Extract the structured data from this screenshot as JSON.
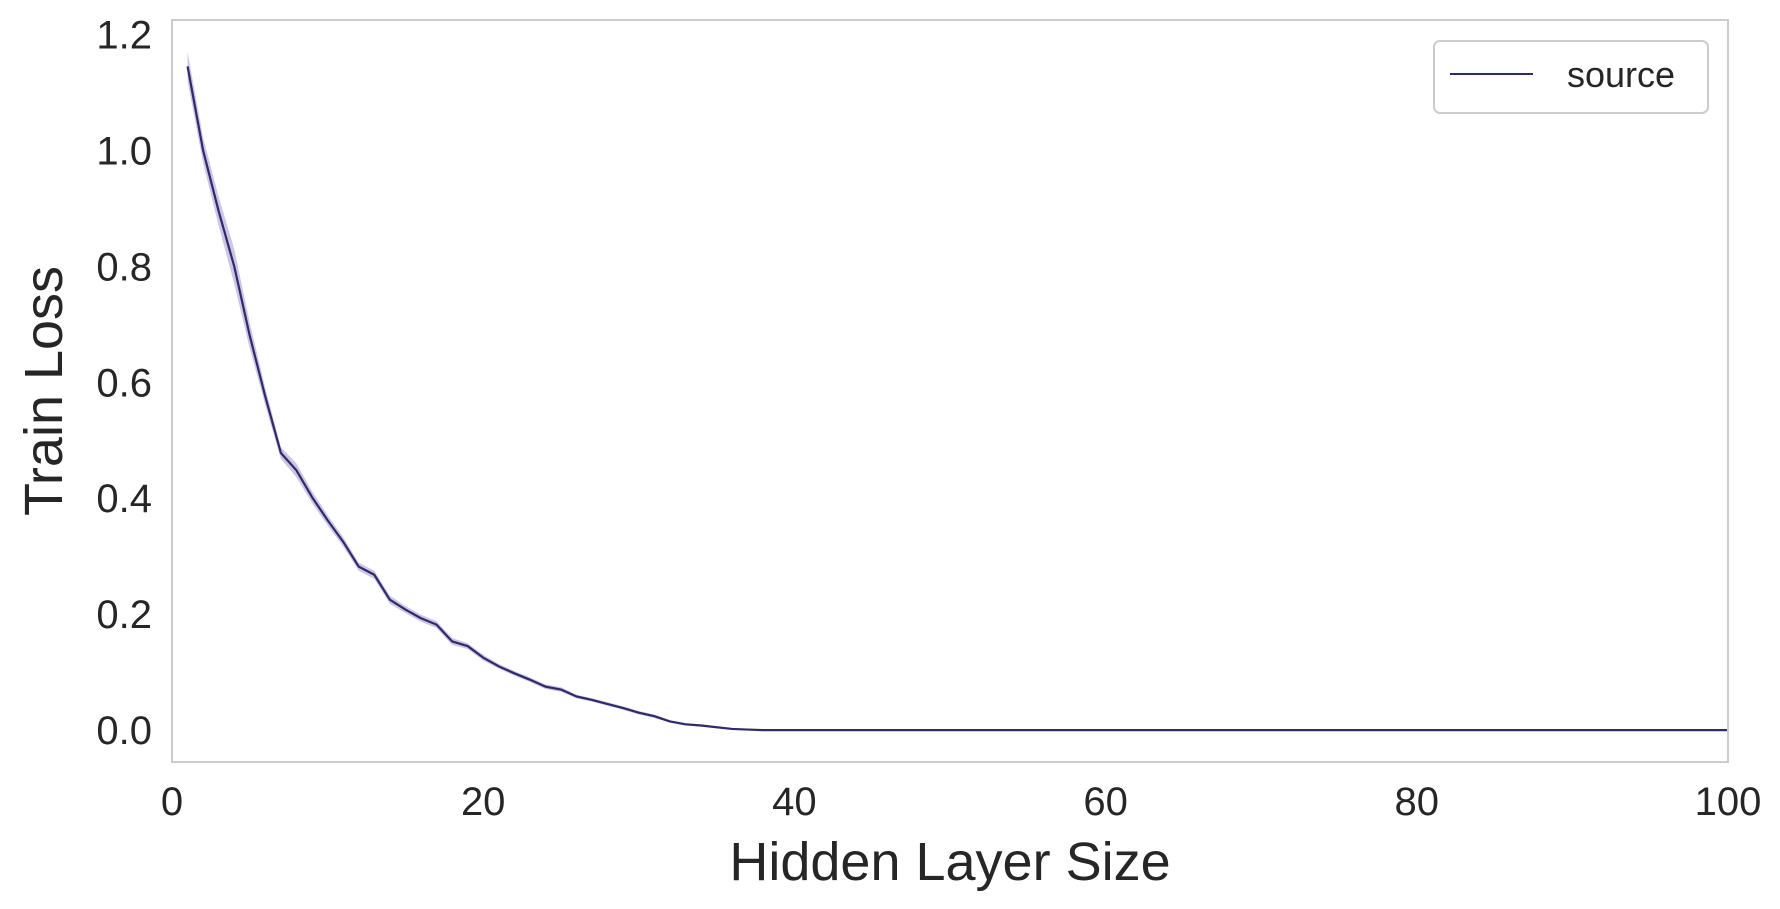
{
  "chart_data": {
    "type": "line",
    "xlabel": "Hidden Layer Size",
    "ylabel": "Train Loss",
    "xlim": [
      0,
      100
    ],
    "ylim": [
      -0.055,
      1.225
    ],
    "xticks": [
      "0",
      "20",
      "40",
      "60",
      "80",
      "100"
    ],
    "yticks": [
      "0.0",
      "0.2",
      "0.4",
      "0.6",
      "0.8",
      "1.0",
      "1.2"
    ],
    "grid": false,
    "legend_position": "top-right",
    "series": [
      {
        "name": "source",
        "color": "#2e2a6b",
        "band_color": "#9a8cc9",
        "x": [
          1,
          2,
          3,
          4,
          5,
          6,
          7,
          8,
          9,
          10,
          11,
          12,
          13,
          14,
          15,
          16,
          17,
          18,
          19,
          20,
          21,
          22,
          23,
          24,
          25,
          26,
          27,
          28,
          29,
          30,
          31,
          32,
          33,
          34,
          35,
          36,
          37,
          38,
          40,
          45,
          50,
          60,
          70,
          80,
          90,
          100
        ],
        "y": [
          1.145,
          1.0,
          0.895,
          0.8,
          0.68,
          0.575,
          0.478,
          0.448,
          0.402,
          0.362,
          0.325,
          0.282,
          0.268,
          0.225,
          0.208,
          0.193,
          0.182,
          0.153,
          0.145,
          0.125,
          0.11,
          0.098,
          0.087,
          0.075,
          0.07,
          0.058,
          0.052,
          0.045,
          0.038,
          0.03,
          0.024,
          0.015,
          0.01,
          0.008,
          0.005,
          0.002,
          0.001,
          0.0,
          0.0,
          0.0,
          0.0,
          0.0,
          0.0,
          0.0,
          0.0,
          0.0
        ],
        "band_halfwidth": [
          0.025,
          0.022,
          0.025,
          0.03,
          0.022,
          0.015,
          0.01,
          0.012,
          0.01,
          0.009,
          0.008,
          0.007,
          0.007,
          0.007,
          0.006,
          0.006,
          0.006,
          0.006,
          0.005,
          0.005,
          0.004,
          0.004,
          0.004,
          0.004,
          0.004,
          0.003,
          0.003,
          0.003,
          0.003,
          0.003,
          0.003,
          0.002,
          0.002,
          0.002,
          0.001,
          0.001,
          0.001,
          0.0,
          0.0,
          0.0,
          0.0,
          0.0,
          0.0,
          0.0,
          0.0,
          0.0
        ]
      }
    ]
  }
}
